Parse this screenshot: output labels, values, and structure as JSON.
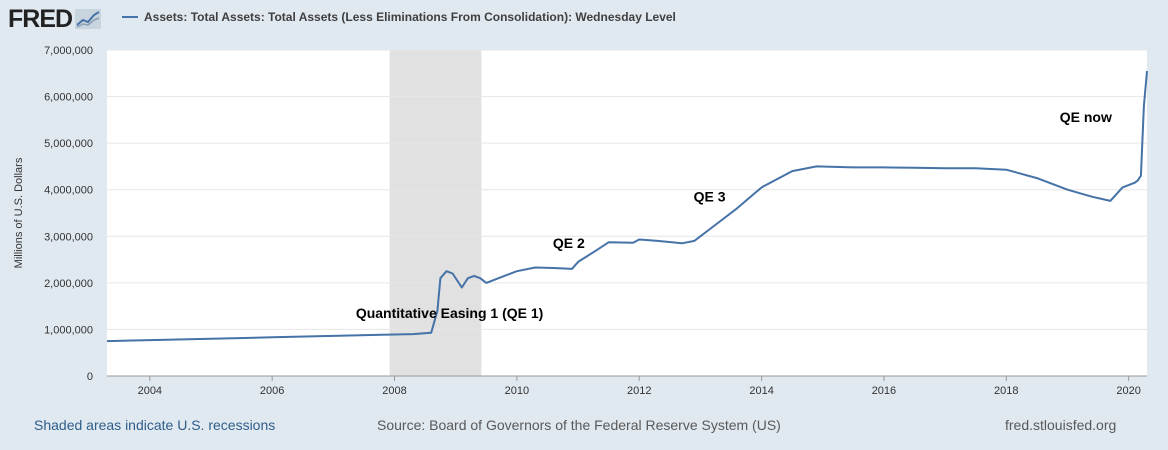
{
  "header": {
    "logo_text": "FRED",
    "legend_label": "Assets: Total Assets: Total Assets (Less Eliminations From Consolidation): Wednesday Level"
  },
  "footer": {
    "recession_note": "Shaded areas indicate U.S. recessions",
    "source": "Source: Board of Governors of the Federal Reserve System (US)",
    "url": "fred.stlouisfed.org"
  },
  "colors": {
    "background": "#e1e9f0",
    "plot_background": "#ffffff",
    "series_line": "#4572a7",
    "recession_shade": "#e1e1e1",
    "gridline": "#e6e6e6"
  },
  "chart_data": {
    "type": "line",
    "title": "",
    "xlabel": "",
    "ylabel": "Millions of U.S. Dollars",
    "xlim": [
      2003.3,
      2020.3
    ],
    "ylim": [
      0,
      7000000
    ],
    "x_ticks": [
      2004,
      2006,
      2008,
      2010,
      2012,
      2014,
      2016,
      2018,
      2020
    ],
    "x_tick_labels": [
      "2004",
      "2006",
      "2008",
      "2010",
      "2012",
      "2014",
      "2016",
      "2018",
      "2020"
    ],
    "y_ticks": [
      0,
      1000000,
      2000000,
      3000000,
      4000000,
      5000000,
      6000000,
      7000000
    ],
    "y_tick_labels": [
      "0",
      "1,000,000",
      "2,000,000",
      "3,000,000",
      "4,000,000",
      "5,000,000",
      "6,000,000",
      "7,000,000"
    ],
    "grid": true,
    "legend": "top-left",
    "recessions": [
      [
        2007.92,
        2009.42
      ]
    ],
    "series": [
      {
        "name": "Assets: Total Assets: Total Assets (Less Eliminations From Consolidation): Wednesday Level",
        "x": [
          2003.3,
          2004.0,
          2005.0,
          2006.0,
          2007.0,
          2007.9,
          2008.3,
          2008.6,
          2008.7,
          2008.75,
          2008.85,
          2008.95,
          2009.1,
          2009.2,
          2009.3,
          2009.4,
          2009.5,
          2009.7,
          2010.0,
          2010.3,
          2010.6,
          2010.9,
          2011.0,
          2011.3,
          2011.5,
          2011.9,
          2012.0,
          2012.3,
          2012.7,
          2012.9,
          2013.2,
          2013.6,
          2014.0,
          2014.5,
          2014.9,
          2015.5,
          2016.0,
          2016.5,
          2017.0,
          2017.5,
          2018.0,
          2018.5,
          2019.0,
          2019.4,
          2019.7,
          2019.9,
          2020.1,
          2020.15,
          2020.2,
          2020.25,
          2020.3
        ],
        "y": [
          750000,
          770000,
          800000,
          830000,
          860000,
          890000,
          900000,
          930000,
          1400000,
          2100000,
          2250000,
          2200000,
          1900000,
          2100000,
          2150000,
          2100000,
          2000000,
          2100000,
          2250000,
          2330000,
          2320000,
          2300000,
          2450000,
          2700000,
          2870000,
          2860000,
          2930000,
          2900000,
          2850000,
          2900000,
          3200000,
          3600000,
          4050000,
          4400000,
          4500000,
          4480000,
          4480000,
          4470000,
          4460000,
          4460000,
          4430000,
          4250000,
          4000000,
          3850000,
          3760000,
          4050000,
          4150000,
          4200000,
          4300000,
          5800000,
          6550000
        ]
      }
    ],
    "annotations": [
      {
        "text": "Quantitative Easing 1 (QE 1)",
        "x": 2008.9,
        "y": 1250000
      },
      {
        "text": "QE 2",
        "x": 2010.85,
        "y": 2750000
      },
      {
        "text": "QE 3",
        "x": 2013.15,
        "y": 3750000
      },
      {
        "text": "QE now",
        "x": 2019.3,
        "y": 5450000
      }
    ]
  }
}
